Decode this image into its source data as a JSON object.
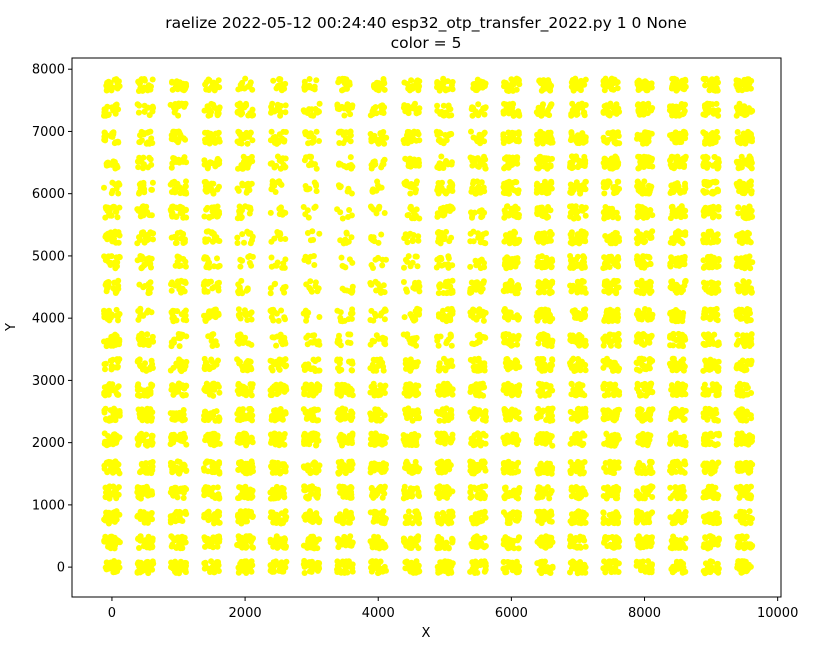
{
  "chart_data": {
    "type": "scatter",
    "title": "raelize 2022-05-12 00:24:40 esp32_otp_transfer_2022.py 1 0 None",
    "subtitle": "color = 5",
    "xlabel": "X",
    "ylabel": "Y",
    "xlim": [
      -600,
      10050
    ],
    "ylim": [
      -480,
      8180
    ],
    "x_ticks": [
      0,
      2000,
      4000,
      6000,
      8000,
      10000
    ],
    "x_tick_labels": [
      "0",
      "2000",
      "4000",
      "6000",
      "8000",
      "10000"
    ],
    "y_ticks": [
      0,
      1000,
      2000,
      3000,
      4000,
      5000,
      6000,
      7000,
      8000
    ],
    "y_tick_labels": [
      "0",
      "1000",
      "2000",
      "3000",
      "4000",
      "5000",
      "6000",
      "7000",
      "8000"
    ],
    "grid": false,
    "marker_color": "#ffff00",
    "series": [
      {
        "grid_x": [
          0,
          500,
          1000,
          1500,
          2000,
          2500,
          3000,
          3500,
          4000,
          4500,
          5000,
          5500,
          6000,
          6500,
          7000,
          7500,
          8000,
          8500,
          9000,
          9500
        ],
        "grid_y": [
          0,
          400,
          800,
          1200,
          1600,
          2050,
          2450,
          2850,
          3250,
          3650,
          4050,
          4500,
          4900,
          5300,
          5700,
          6100,
          6500,
          6900,
          7350,
          7750
        ],
        "cluster_spread": [
          120,
          100
        ]
      }
    ]
  }
}
